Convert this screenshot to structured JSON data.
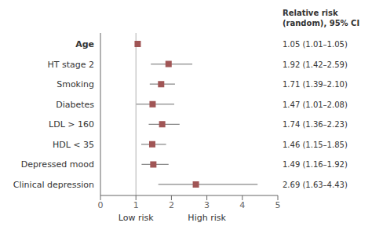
{
  "chart_data": {
    "type": "forest",
    "categories": [
      "Age",
      "HT stage 2",
      "Smoking",
      "Diabetes",
      "LDL > 160",
      "HDL < 35",
      "Depressed mood",
      "Clinical depression"
    ],
    "values": [
      1.05,
      1.92,
      1.71,
      1.47,
      1.74,
      1.46,
      1.49,
      2.69
    ],
    "ci_lower": [
      1.01,
      1.42,
      1.39,
      1.01,
      1.36,
      1.15,
      1.16,
      1.63
    ],
    "ci_upper": [
      1.05,
      2.59,
      2.1,
      2.08,
      2.23,
      1.85,
      1.92,
      4.43
    ],
    "value_labels": [
      "1.05 (1.01–1.05)",
      "1.92 (1.42–2.59)",
      "1.71 (1.39–2.10)",
      "1.47 (1.01–2.08)",
      "1.74 (1.36–2.23)",
      "1.46 (1.15–1.85)",
      "1.49 (1.16–1.92)",
      "2.69 (1.63–4.43)"
    ],
    "value_labels_header": [
      "Relative risk",
      "(random), 95% CI"
    ],
    "annotations": [
      {
        "text": "Low risk",
        "x": 1
      },
      {
        "text": "High risk",
        "x": 3
      }
    ],
    "reference_line": 1,
    "xlim": [
      0,
      5
    ],
    "xticks": [
      0,
      1,
      2,
      3,
      4,
      5
    ],
    "color": "#a05555",
    "marker": "square",
    "grid": false
  }
}
